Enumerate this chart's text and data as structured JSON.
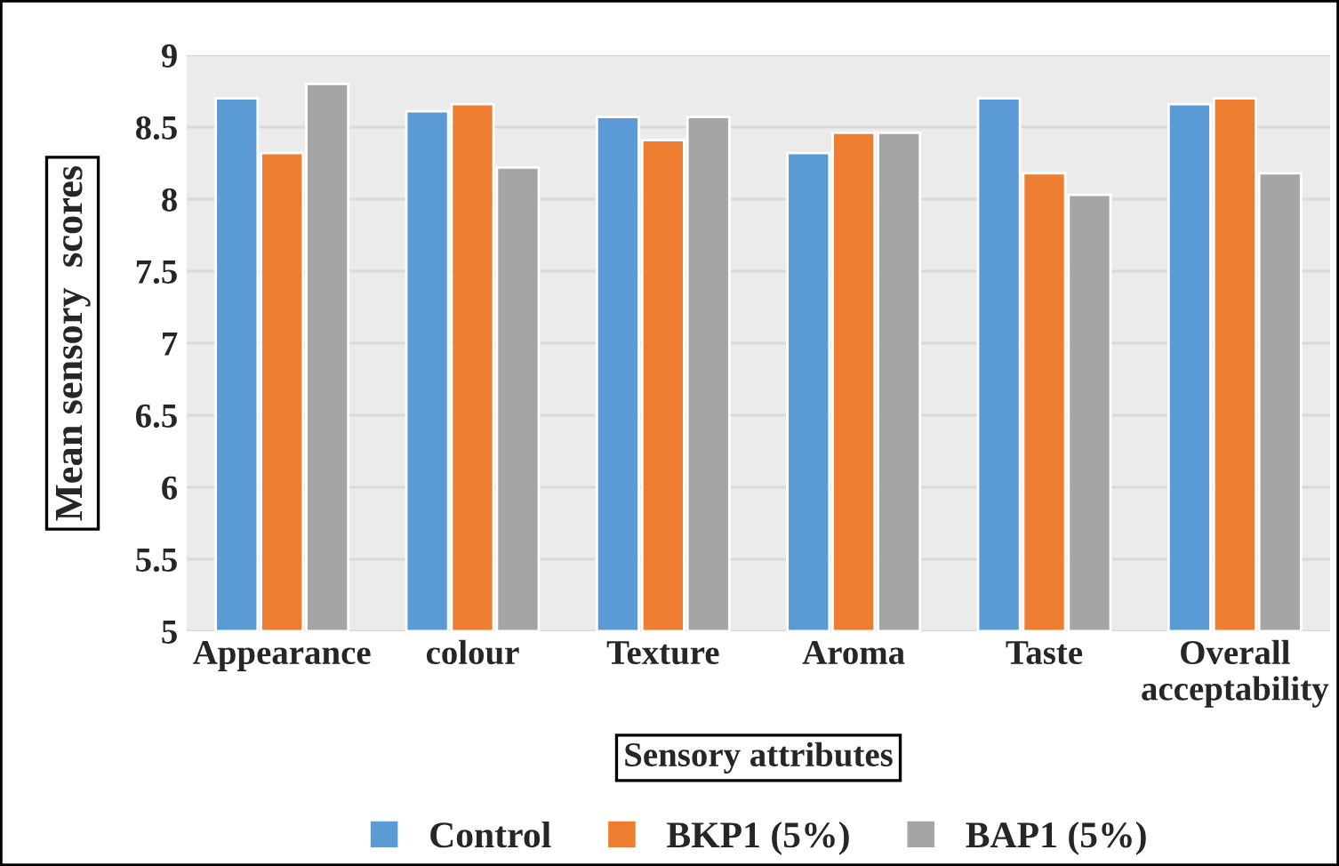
{
  "chart_data": {
    "type": "bar",
    "xlabel": "Sensory attributes",
    "ylabel": "Mean sensory  scores",
    "categories": [
      "Appearance",
      "colour",
      "Texture",
      "Aroma",
      "Taste",
      "Overall\nacceptability"
    ],
    "series": [
      {
        "name": "Control",
        "color": "#5b9bd5",
        "values": [
          8.7,
          8.61,
          8.57,
          8.32,
          8.7,
          8.66
        ]
      },
      {
        "name": "BKP1 (5%)",
        "color": "#ed7d31",
        "values": [
          8.32,
          8.66,
          8.41,
          8.46,
          8.18,
          8.7
        ]
      },
      {
        "name": "BAP1 (5%)",
        "color": "#a5a5a5",
        "values": [
          8.8,
          8.22,
          8.57,
          8.46,
          8.03,
          8.18
        ]
      }
    ],
    "ylim": [
      5,
      9
    ],
    "yticks": [
      5,
      5.5,
      6,
      6.5,
      7,
      7.5,
      8,
      8.5,
      9
    ],
    "grid": "y",
    "legend": "bottom"
  }
}
